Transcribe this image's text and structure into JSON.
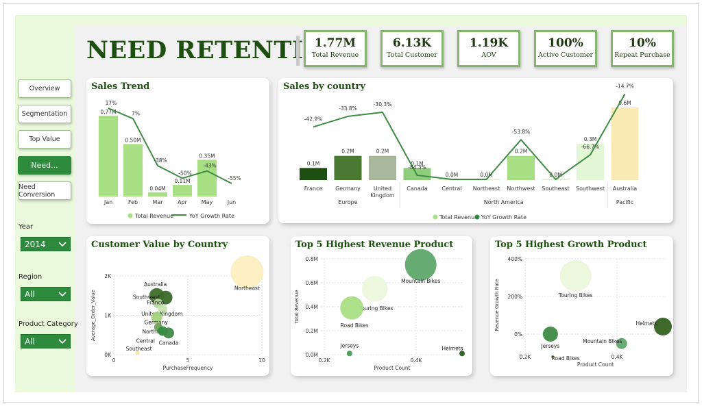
{
  "page_title": "NEED RETENTION",
  "kpis": [
    {
      "value": "1.77M",
      "label": "Total Revenue"
    },
    {
      "value": "6.13K",
      "label": "Total Customer"
    },
    {
      "value": "1.19K",
      "label": "AOV"
    },
    {
      "value": "100%",
      "label": "Active Customer"
    },
    {
      "value": "10%",
      "label": "Repeat Purchase"
    }
  ],
  "nav": [
    {
      "label": "Overview"
    },
    {
      "label": "Segmentation"
    },
    {
      "label": "Top Value"
    },
    {
      "label": "Need...",
      "active": true
    },
    {
      "label": "Need Conversion"
    }
  ],
  "filters": {
    "year": {
      "label": "Year",
      "value": "2014"
    },
    "region": {
      "label": "Region",
      "value": "All"
    },
    "category": {
      "label": "Product Category",
      "value": "All"
    }
  },
  "colors": {
    "accent": "#2e8b3e",
    "title": "#1d4f10",
    "bar_light": "#a8df84",
    "line": "#3e8c43"
  },
  "sales_trend": {
    "title": "Sales Trend",
    "legend": [
      "Total Revenue",
      "YoY Growth Rate"
    ],
    "chart_data": {
      "type": "bar",
      "categories": [
        "Jan",
        "Feb",
        "Mar",
        "Apr",
        "May",
        "Jun"
      ],
      "series": [
        {
          "name": "Total Revenue",
          "values": [
            0.77,
            0.5,
            0.04,
            0.11,
            0.35,
            0.0
          ],
          "labels": [
            "0.77M",
            "0.50M",
            "0.04M",
            "0.11M",
            "0.35M",
            ""
          ]
        },
        {
          "name": "YoY Growth Rate",
          "values": [
            17,
            7,
            -38,
            -50,
            -43,
            -55
          ],
          "labels": [
            "17%",
            "7%",
            "-38%",
            "-50%",
            "-43%",
            "-55%"
          ]
        }
      ]
    }
  },
  "sales_country": {
    "title": "Sales by country",
    "legend": [
      "Total Revenue",
      "YoY Growth Rate"
    ],
    "groups": [
      {
        "name": "Europe",
        "count": 3
      },
      {
        "name": "North America",
        "count": 6
      },
      {
        "name": "Pacific",
        "count": 1
      }
    ],
    "chart_data": {
      "type": "bar",
      "categories": [
        "France",
        "Germany",
        "United Kingdom",
        "Canada",
        "Central",
        "Northeast",
        "Northwest",
        "Southeast",
        "Southwest",
        "Australia"
      ],
      "series": [
        {
          "name": "Total Revenue",
          "values": [
            0.1,
            0.2,
            0.2,
            0.1,
            0.0,
            0.0,
            0.2,
            0.0,
            0.3,
            0.6
          ],
          "labels": [
            "0.1M",
            "0.2M",
            "0.2M",
            "0.1M",
            "0.0M",
            "0.0M",
            "0.2M",
            "0.0M",
            "0.3M",
            "0.6M"
          ]
        },
        {
          "name": "YoY Growth Rate",
          "values": [
            -42.9,
            -33.8,
            -30.3,
            -84.3,
            null,
            null,
            -53.8,
            null,
            -66.7,
            -14.7
          ],
          "labels": [
            "-42.9%",
            "-33.8%",
            "-30.3%",
            "-84.3%",
            "",
            "",
            "-53.8%",
            "",
            "-66.7%",
            "-14.7%"
          ]
        }
      ]
    }
  },
  "customer_value": {
    "title": "Customer Value by Country",
    "chart_data": {
      "type": "scatter",
      "xlabel": "PurchaseFrequency",
      "ylabel": "Average_Order_Value",
      "xticks": [
        "0",
        "5",
        "10"
      ],
      "yticks": [
        "0K",
        "1K",
        "2K"
      ],
      "points": [
        {
          "label": "Northeast",
          "x": 9.0,
          "y": 2.1
        },
        {
          "label": "Australia",
          "x": 2.9,
          "y": 1.5
        },
        {
          "label": "Southwest",
          "x": 3.5,
          "y": 1.45
        },
        {
          "label": "France",
          "x": 3.0,
          "y": 1.3
        },
        {
          "label": "United Kingdom",
          "x": 3.3,
          "y": 1.15
        },
        {
          "label": "Germany",
          "x": 2.9,
          "y": 0.95
        },
        {
          "label": "Northwest",
          "x": 3.0,
          "y": 0.7
        },
        {
          "label": "Central",
          "x": 3.3,
          "y": 0.6
        },
        {
          "label": "Canada",
          "x": 3.7,
          "y": 0.55
        },
        {
          "label": "Southeast",
          "x": 1.6,
          "y": 0.05
        }
      ]
    }
  },
  "top_revenue": {
    "title": "Top 5 Highest Revenue Product",
    "chart_data": {
      "type": "scatter",
      "xlabel": "Product Count",
      "ylabel": "Total Revenue",
      "xticks": [
        "0.2K",
        "0.4K"
      ],
      "yticks": [
        "0.0M",
        "0.2M",
        "0.4M",
        "0.6M",
        "0.8M"
      ],
      "points": [
        {
          "label": "Mountain Bikes",
          "x": 0.41,
          "y": 0.75
        },
        {
          "label": "Touring Bikes",
          "x": 0.31,
          "y": 0.55
        },
        {
          "label": "Road Bikes",
          "x": 0.26,
          "y": 0.39
        },
        {
          "label": "Jerseys",
          "x": 0.255,
          "y": 0.01
        },
        {
          "label": "Helmets",
          "x": 0.5,
          "y": 0.01
        }
      ]
    }
  },
  "top_growth": {
    "title": "Top 5 Highest Growth Product",
    "chart_data": {
      "type": "scatter",
      "xlabel": "Product Count",
      "ylabel": "Revenue Growth Rate",
      "xticks": [
        "0.2K",
        "0.4K"
      ],
      "yticks": [
        "0%",
        "200%",
        "400%"
      ],
      "points": [
        {
          "label": "Touring Bikes",
          "x": 0.31,
          "y": 310
        },
        {
          "label": "Helmets",
          "x": 0.5,
          "y": 40
        },
        {
          "label": "Mountain Bikes",
          "x": 0.41,
          "y": -50
        },
        {
          "label": "Jerseys",
          "x": 0.255,
          "y": 0
        },
        {
          "label": "Road Bikes",
          "x": 0.26,
          "y": -120
        }
      ]
    }
  }
}
